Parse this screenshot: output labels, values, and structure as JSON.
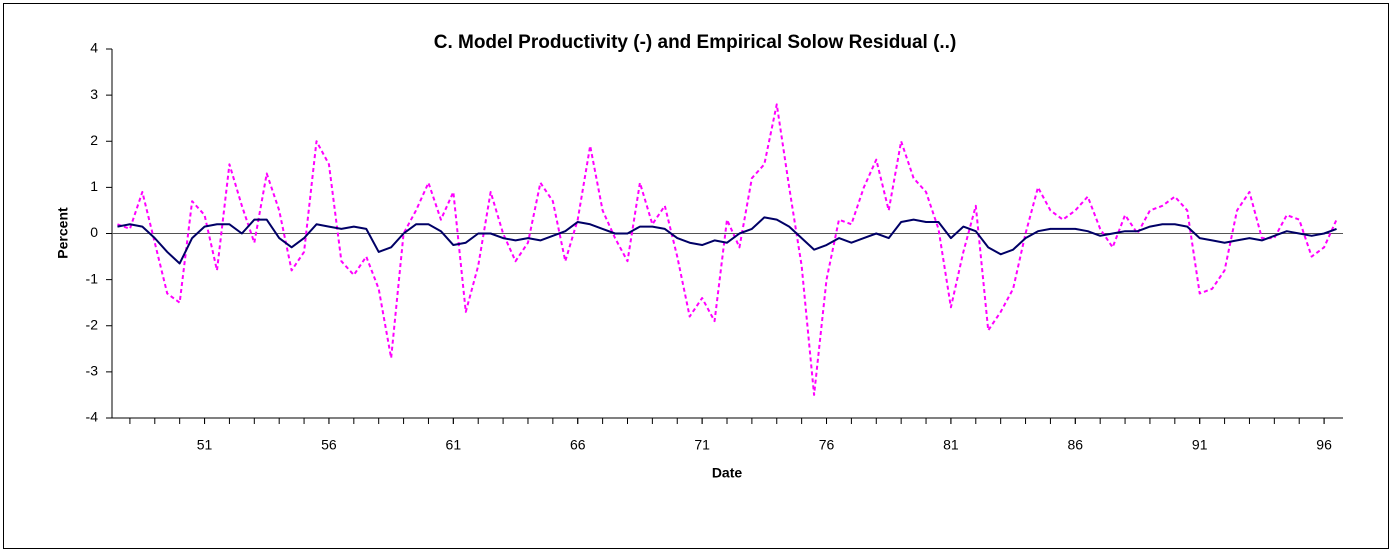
{
  "chart_data": {
    "type": "line",
    "title": "C. Model Productivity (-) and Empirical Solow Residual (..)",
    "x_label": "Date",
    "y_label": "Percent",
    "x": [
      47.5,
      48,
      48.5,
      49,
      49.5,
      50,
      50.5,
      51,
      51.5,
      52,
      52.5,
      53,
      53.5,
      54,
      54.5,
      55,
      55.5,
      56,
      56.5,
      57,
      57.5,
      58,
      58.5,
      59,
      59.5,
      60,
      60.5,
      61,
      61.5,
      62,
      62.5,
      63,
      63.5,
      64,
      64.5,
      65,
      65.5,
      66,
      66.5,
      67,
      67.5,
      68,
      68.5,
      69,
      69.5,
      70,
      70.5,
      71,
      71.5,
      72,
      72.5,
      73,
      73.5,
      74,
      74.5,
      75,
      75.5,
      76,
      76.5,
      77,
      77.5,
      78,
      78.5,
      79,
      79.5,
      80,
      80.5,
      81,
      81.5,
      82,
      82.5,
      83,
      83.5,
      84,
      84.5,
      85,
      85.5,
      86,
      86.5,
      87,
      87.5,
      88,
      88.5,
      89,
      89.5,
      90,
      90.5,
      91,
      91.5,
      92,
      92.5,
      93,
      93.5,
      94,
      94.5,
      95,
      95.5,
      96,
      96.5
    ],
    "series": [
      {
        "color": "#000066",
        "dashed": false,
        "values": [
          0.15,
          0.2,
          0.15,
          -0.1,
          -0.4,
          -0.65,
          -0.1,
          0.15,
          0.2,
          0.2,
          0.0,
          0.3,
          0.3,
          -0.1,
          -0.3,
          -0.1,
          0.2,
          0.15,
          0.1,
          0.15,
          0.1,
          -0.4,
          -0.3,
          0.0,
          0.2,
          0.2,
          0.05,
          -0.25,
          -0.2,
          0.0,
          0.0,
          -0.1,
          -0.15,
          -0.1,
          -0.15,
          -0.05,
          0.05,
          0.25,
          0.2,
          0.1,
          0.0,
          0.0,
          0.15,
          0.15,
          0.1,
          -0.1,
          -0.2,
          -0.25,
          -0.15,
          -0.2,
          0.0,
          0.1,
          0.35,
          0.3,
          0.15,
          -0.1,
          -0.35,
          -0.25,
          -0.1,
          -0.2,
          -0.1,
          0.0,
          -0.1,
          0.25,
          0.3,
          0.25,
          0.25,
          -0.1,
          0.15,
          0.05,
          -0.3,
          -0.45,
          -0.35,
          -0.1,
          0.05,
          0.1,
          0.1,
          0.1,
          0.05,
          -0.05,
          0.0,
          0.05,
          0.05,
          0.15,
          0.2,
          0.2,
          0.15,
          -0.1,
          -0.15,
          -0.2,
          -0.15,
          -0.1,
          -0.15,
          -0.05,
          0.05,
          0.0,
          -0.05,
          0.0,
          0.1
        ]
      },
      {
        "color": "#ff00ff",
        "dashed": true,
        "values": [
          0.2,
          0.1,
          0.9,
          -0.2,
          -1.3,
          -1.5,
          0.7,
          0.4,
          -0.8,
          1.5,
          0.6,
          -0.2,
          1.3,
          0.5,
          -0.8,
          -0.4,
          2.0,
          1.5,
          -0.6,
          -0.9,
          -0.5,
          -1.2,
          -2.7,
          0.0,
          0.5,
          1.1,
          0.3,
          0.9,
          -1.7,
          -0.7,
          0.9,
          0.0,
          -0.6,
          -0.2,
          1.1,
          0.7,
          -0.6,
          0.3,
          1.9,
          0.5,
          -0.1,
          -0.6,
          1.1,
          0.2,
          0.6,
          -0.5,
          -1.8,
          -1.4,
          -1.9,
          0.3,
          -0.3,
          1.2,
          1.5,
          2.8,
          1.0,
          -0.7,
          -3.5,
          -1.0,
          0.3,
          0.2,
          1.0,
          1.6,
          0.5,
          2.0,
          1.2,
          0.9,
          0.1,
          -1.6,
          -0.4,
          0.6,
          -2.1,
          -1.7,
          -1.2,
          0.0,
          1.0,
          0.5,
          0.3,
          0.5,
          0.8,
          0.1,
          -0.3,
          0.4,
          0.0,
          0.5,
          0.6,
          0.8,
          0.5,
          -1.3,
          -1.2,
          -0.8,
          0.5,
          0.9,
          -0.1,
          -0.1,
          0.4,
          0.3,
          -0.5,
          -0.3,
          0.3
        ]
      }
    ],
    "xlim": [
      47.28,
      96.76
    ],
    "xticks": [
      51,
      56,
      61,
      66,
      71,
      76,
      81,
      86,
      91,
      96
    ],
    "xminorticks": [
      48,
      49,
      50,
      51,
      52,
      53,
      54,
      55,
      56,
      57,
      58,
      59,
      60,
      61,
      62,
      63,
      64,
      65,
      66,
      67,
      68,
      69,
      70,
      71,
      72,
      73,
      74,
      75,
      76,
      77,
      78,
      79,
      80,
      81,
      82,
      83,
      84,
      85,
      86,
      87,
      88,
      89,
      90,
      91,
      92,
      93,
      94,
      95,
      96
    ],
    "ylim": [
      -4,
      4
    ],
    "yticks": [
      -4,
      -3,
      -2,
      -1,
      0,
      1,
      2,
      3,
      4
    ],
    "zero_line": true
  }
}
